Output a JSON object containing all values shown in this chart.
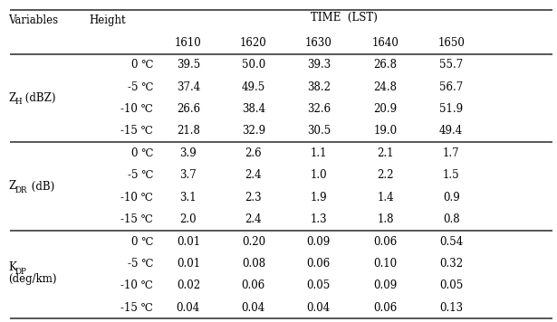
{
  "sections": [
    {
      "var_label_line1": "Z",
      "var_label_sub": "H",
      "var_label_line2": " (dBZ)",
      "var_label_two_lines": false,
      "rows": [
        {
          "height": "0 ℃",
          "values": [
            "39.5",
            "50.0",
            "39.3",
            "26.8",
            "55.7"
          ]
        },
        {
          "height": "-5 ℃",
          "values": [
            "37.4",
            "49.5",
            "38.2",
            "24.8",
            "56.7"
          ]
        },
        {
          "height": "-10 ℃",
          "values": [
            "26.6",
            "38.4",
            "32.6",
            "20.9",
            "51.9"
          ]
        },
        {
          "height": "-15 ℃",
          "values": [
            "21.8",
            "32.9",
            "30.5",
            "19.0",
            "49.4"
          ]
        }
      ]
    },
    {
      "var_label_line1": "Z",
      "var_label_sub": "DR",
      "var_label_line2": " (dB)",
      "var_label_two_lines": false,
      "rows": [
        {
          "height": "0 ℃",
          "values": [
            "3.9",
            "2.6",
            "1.1",
            "2.1",
            "1.7"
          ]
        },
        {
          "height": "-5 ℃",
          "values": [
            "3.7",
            "2.4",
            "1.0",
            "2.2",
            "1.5"
          ]
        },
        {
          "height": "-10 ℃",
          "values": [
            "3.1",
            "2.3",
            "1.9",
            "1.4",
            "0.9"
          ]
        },
        {
          "height": "-15 ℃",
          "values": [
            "2.0",
            "2.4",
            "1.3",
            "1.8",
            "0.8"
          ]
        }
      ]
    },
    {
      "var_label_line1": "K",
      "var_label_sub": "DP",
      "var_label_line2": "(deg/km)",
      "var_label_two_lines": true,
      "rows": [
        {
          "height": "0 ℃",
          "values": [
            "0.01",
            "0.20",
            "0.09",
            "0.06",
            "0.54"
          ]
        },
        {
          "height": "-5 ℃",
          "values": [
            "0.01",
            "0.08",
            "0.06",
            "0.10",
            "0.32"
          ]
        },
        {
          "height": "-10 ℃",
          "values": [
            "0.02",
            "0.06",
            "0.05",
            "0.09",
            "0.05"
          ]
        },
        {
          "height": "-15 ℃",
          "values": [
            "0.04",
            "0.04",
            "0.04",
            "0.06",
            "0.13"
          ]
        }
      ]
    }
  ],
  "times": [
    "1610",
    "1620",
    "1630",
    "1640",
    "1650"
  ],
  "background_color": "#ffffff",
  "text_color": "#000000",
  "line_color": "#888888",
  "thick_line_color": "#555555",
  "fontsize": 8.5,
  "figsize": [
    6.15,
    3.56
  ],
  "dpi": 100
}
